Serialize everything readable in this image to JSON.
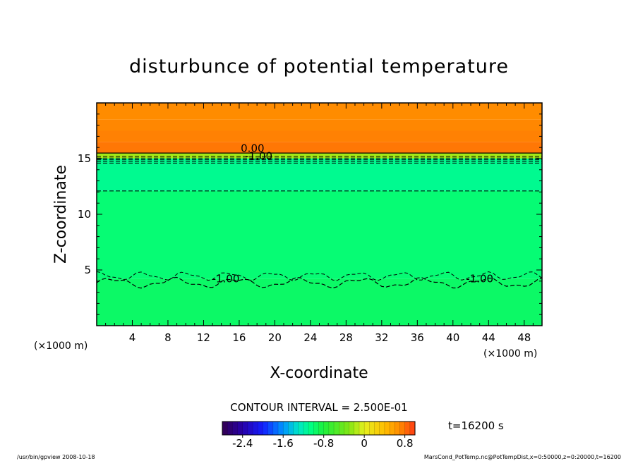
{
  "chart_data": {
    "type": "heatmap",
    "title": "disturbunce of potential temperature",
    "xlabel": "X-coordinate",
    "ylabel": "Z-coordinate",
    "x_unit": "(×1000 m)",
    "y_unit": "(×1000 m)",
    "xlim": [
      0,
      50
    ],
    "ylim": [
      0,
      20
    ],
    "x_ticks": [
      4,
      8,
      12,
      16,
      20,
      24,
      28,
      32,
      36,
      40,
      44,
      48
    ],
    "y_ticks": [
      5,
      10,
      15
    ],
    "contour_interval": "CONTOUR INTERVAL = 2.500E-01",
    "time_label": "t=16200 s",
    "contour_labels": [
      {
        "text": "0.00",
        "x": 17.5,
        "z": 15.6
      },
      {
        "text": "-1.00",
        "x": 18.2,
        "z": 14.9
      },
      {
        "text": "-1.00",
        "x": 14.5,
        "z": 3.9
      },
      {
        "text": "-1.00",
        "x": 43.0,
        "z": 3.9
      }
    ],
    "layers": [
      {
        "z0": 0.0,
        "z1": 4.2,
        "value": -0.95
      },
      {
        "z0": 4.2,
        "z1": 12.1,
        "value": -1.0
      },
      {
        "z0": 12.1,
        "z1": 15.0,
        "value": -1.1
      },
      {
        "z0": 15.0,
        "z1": 15.5,
        "value": -0.2
      },
      {
        "z0": 15.5,
        "z1": 16.5,
        "value": 0.78
      },
      {
        "z0": 16.5,
        "z1": 17.5,
        "value": 0.74
      },
      {
        "z0": 17.5,
        "z1": 18.5,
        "value": 0.72
      },
      {
        "z0": 18.5,
        "z1": 20.0,
        "value": 0.7
      }
    ],
    "colorbar": {
      "min": -2.8,
      "max": 1.0,
      "step": 0.1,
      "tick_values": [
        -2.4,
        -1.6,
        -0.8,
        0,
        0.8
      ],
      "tick_labels": [
        "-2.4",
        "-1.6",
        "-0.8",
        "0",
        "0.8"
      ]
    }
  },
  "footer": {
    "left": "/usr/bin/gpview   2008-10-18",
    "right": "MarsCond_PotTemp.nc@PotTempDist,x=0:50000,z=0:20000,t=16200"
  }
}
